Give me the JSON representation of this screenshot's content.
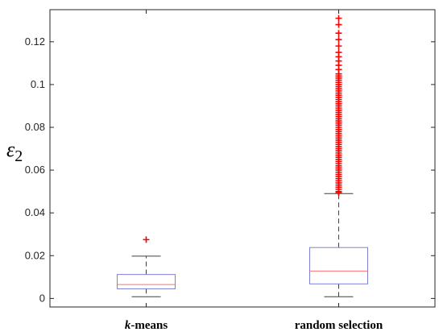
{
  "chart_data": {
    "type": "box",
    "title": "",
    "xlabel": "",
    "ylabel": "ε",
    "ylabel_subscript": "2",
    "ylim": [
      -0.004,
      0.135
    ],
    "yticks": [
      "0",
      "0.02",
      "0.04",
      "0.06",
      "0.08",
      "0.1",
      "0.12"
    ],
    "ytick_values": [
      0,
      0.02,
      0.04,
      0.06,
      0.08,
      0.1,
      0.12
    ],
    "grid": false,
    "categories": [
      {
        "prefix": "k",
        "suffix": "-means"
      },
      {
        "prefix": "",
        "suffix": "random selection"
      }
    ],
    "boxes": [
      {
        "q1": 0.0045,
        "median": 0.0065,
        "q3": 0.0112,
        "whisker_low": 0.0008,
        "whisker_high": 0.0198,
        "outliers": [
          0.0275
        ]
      },
      {
        "q1": 0.0068,
        "median": 0.0128,
        "q3": 0.0238,
        "whisker_low": 0.0008,
        "whisker_high": 0.049,
        "outliers": [
          0.0495,
          0.05,
          0.051,
          0.052,
          0.053,
          0.054,
          0.055,
          0.056,
          0.057,
          0.058,
          0.059,
          0.06,
          0.061,
          0.062,
          0.063,
          0.064,
          0.065,
          0.066,
          0.067,
          0.068,
          0.069,
          0.07,
          0.071,
          0.072,
          0.073,
          0.074,
          0.075,
          0.076,
          0.077,
          0.078,
          0.079,
          0.08,
          0.081,
          0.082,
          0.083,
          0.084,
          0.085,
          0.086,
          0.087,
          0.088,
          0.089,
          0.09,
          0.091,
          0.092,
          0.093,
          0.094,
          0.095,
          0.096,
          0.097,
          0.098,
          0.099,
          0.1,
          0.101,
          0.102,
          0.103,
          0.104,
          0.105,
          0.107,
          0.109,
          0.111,
          0.113,
          0.115,
          0.118,
          0.121,
          0.124,
          0.128,
          0.131
        ]
      }
    ],
    "colors": {
      "box": "#7f7fd6",
      "median": "#ff6f6f",
      "whisker": "#404040",
      "outlier": "#ff0000",
      "axis": "#262626"
    }
  }
}
